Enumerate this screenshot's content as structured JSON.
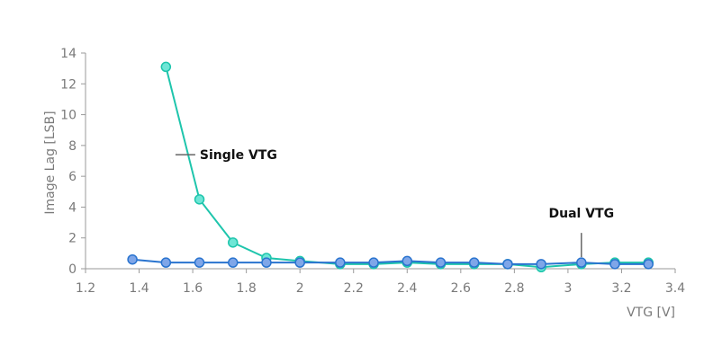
{
  "chart_data": {
    "type": "line",
    "title": "",
    "xlabel": "VTG [V]",
    "ylabel": "Image Lag [LSB]",
    "xlim": [
      1.2,
      3.4
    ],
    "ylim": [
      0,
      14
    ],
    "x_ticks": [
      "1.2",
      "1.4",
      "1.6",
      "1.8",
      "2",
      "2.2",
      "2.4",
      "2.6",
      "2.8",
      "3",
      "3.2",
      "3.4"
    ],
    "y_ticks": [
      "0",
      "2",
      "4",
      "6",
      "8",
      "10",
      "12",
      "14"
    ],
    "grid": false,
    "series": [
      {
        "name": "Single VTG",
        "color": "#1ec5ac",
        "marker_fill": "#6ee6d6",
        "x": [
          1.5,
          1.625,
          1.75,
          1.875,
          2.0,
          2.15,
          2.275,
          2.4,
          2.525,
          2.65,
          2.775,
          2.9,
          3.05,
          3.175,
          3.3
        ],
        "y": [
          13.1,
          4.5,
          1.7,
          0.7,
          0.5,
          0.3,
          0.3,
          0.4,
          0.3,
          0.3,
          0.3,
          0.1,
          0.3,
          0.4,
          0.4
        ]
      },
      {
        "name": "Dual VTG",
        "color": "#2a74cf",
        "marker_fill": "#7fa6e8",
        "x": [
          1.375,
          1.5,
          1.625,
          1.75,
          1.875,
          2.0,
          2.15,
          2.275,
          2.4,
          2.525,
          2.65,
          2.775,
          2.9,
          3.05,
          3.175,
          3.3
        ],
        "y": [
          0.6,
          0.4,
          0.4,
          0.4,
          0.4,
          0.4,
          0.4,
          0.4,
          0.5,
          0.4,
          0.4,
          0.3,
          0.3,
          0.4,
          0.3,
          0.3
        ]
      }
    ],
    "annotations": [
      {
        "text": "Single VTG",
        "series": 0
      },
      {
        "text": "Dual VTG",
        "series": 1
      }
    ]
  }
}
